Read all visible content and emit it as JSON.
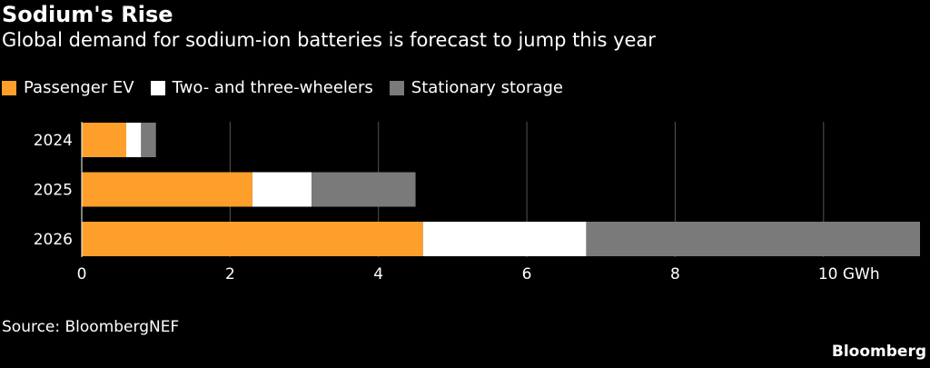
{
  "chart_data": {
    "type": "bar",
    "orientation": "horizontal",
    "stacked": true,
    "title": "Sodium's Rise",
    "subtitle": "Global demand for sodium-ion batteries is forecast to jump this year",
    "categories": [
      "2024",
      "2025",
      "2026"
    ],
    "series": [
      {
        "name": "Passenger EV",
        "color": "#fd9f2a",
        "values": [
          0.6,
          2.3,
          4.6
        ]
      },
      {
        "name": "Two- and three-wheelers",
        "color": "#ffffff",
        "values": [
          0.2,
          0.8,
          2.2
        ]
      },
      {
        "name": "Stationary storage",
        "color": "#7a7a7a",
        "values": [
          0.2,
          1.4,
          4.5
        ]
      }
    ],
    "xticks": [
      0,
      2,
      4,
      6,
      8,
      10
    ],
    "xtick_labels": [
      "0",
      "2",
      "4",
      "6",
      "8",
      "10 GWh"
    ],
    "xlim": [
      0,
      11.3
    ],
    "grid": "vertical",
    "legend_placement": "top-left",
    "source": "Source: BloombergNEF",
    "brand": "Bloomberg"
  }
}
